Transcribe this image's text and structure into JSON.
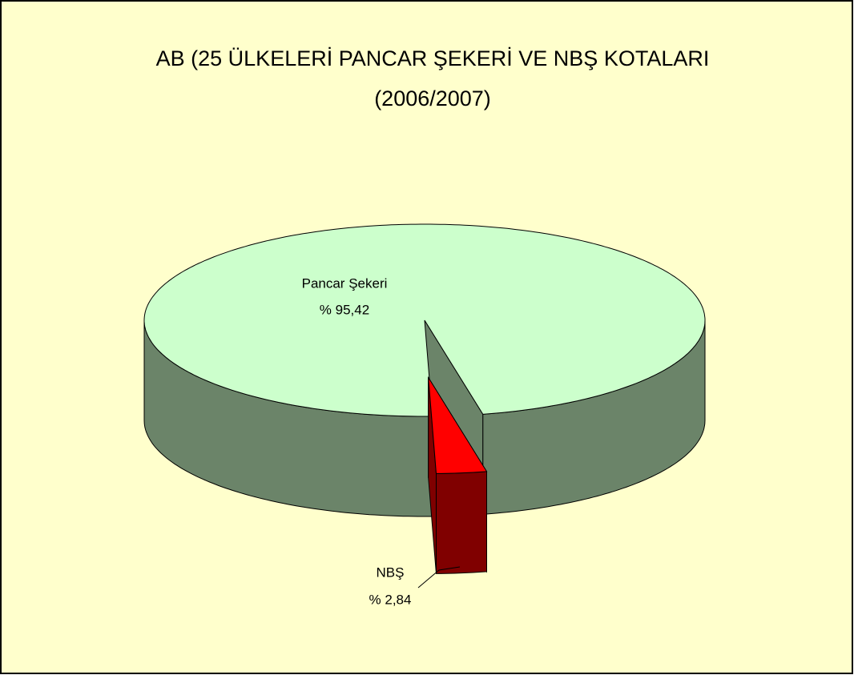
{
  "chart_data": {
    "type": "pie3d",
    "title": [
      "AB (25 ÜLKELERİ PANCAR ŞEKERİ VE NBŞ KOTALARI",
      "(2006/2007)"
    ],
    "categories": [
      "Pancar Şekeri",
      "NBŞ"
    ],
    "values": [
      95.42,
      2.84
    ],
    "value_labels": [
      "% 95,42",
      "% 2,84"
    ],
    "colors": [
      "#ccffcc",
      "#ff0000"
    ],
    "side_colors": [
      "#6b8469",
      "#800000"
    ],
    "background": "#ffffcc"
  }
}
